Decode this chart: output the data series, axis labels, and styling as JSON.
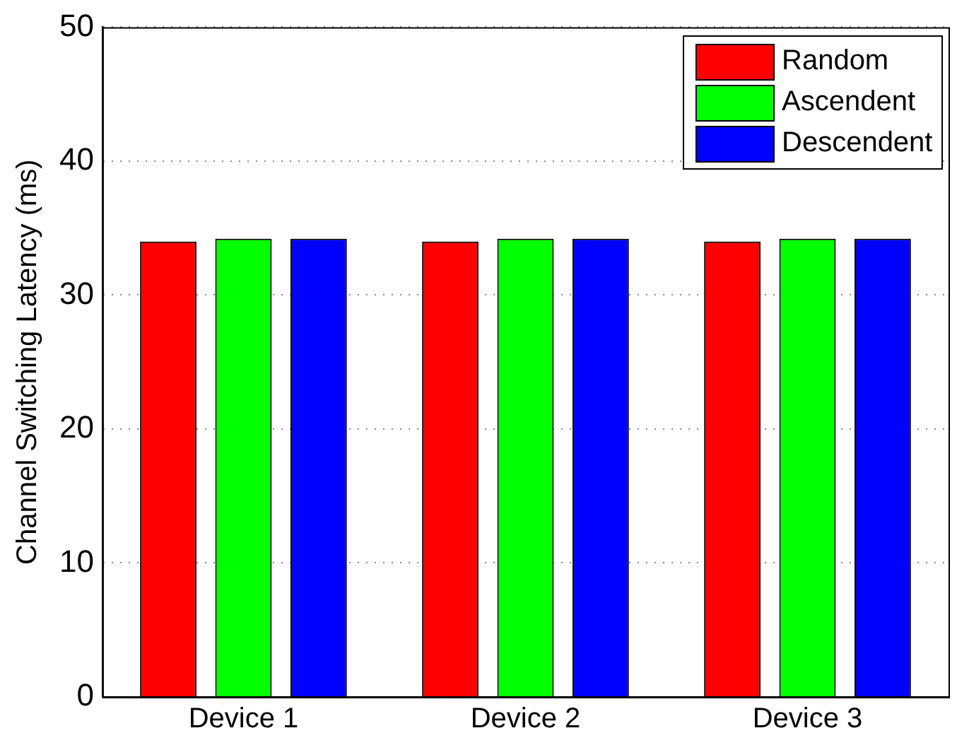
{
  "chart_data": {
    "type": "bar",
    "ylabel": "Channel Switching Latency (ms)",
    "categories": [
      "Device 1",
      "Device 2",
      "Device 3"
    ],
    "series": [
      {
        "name": "Random",
        "color": "#ff0000",
        "values": [
          34,
          34,
          34
        ]
      },
      {
        "name": "Ascendent",
        "color": "#00ff00",
        "values": [
          34.2,
          34.2,
          34.2
        ]
      },
      {
        "name": "Descendent",
        "color": "#0000ff",
        "values": [
          34.2,
          34.2,
          34.2
        ]
      }
    ],
    "ylim": [
      0,
      50
    ],
    "yticks": [
      0,
      10,
      20,
      30,
      40,
      50
    ],
    "grid": "y",
    "legend": "top right"
  }
}
